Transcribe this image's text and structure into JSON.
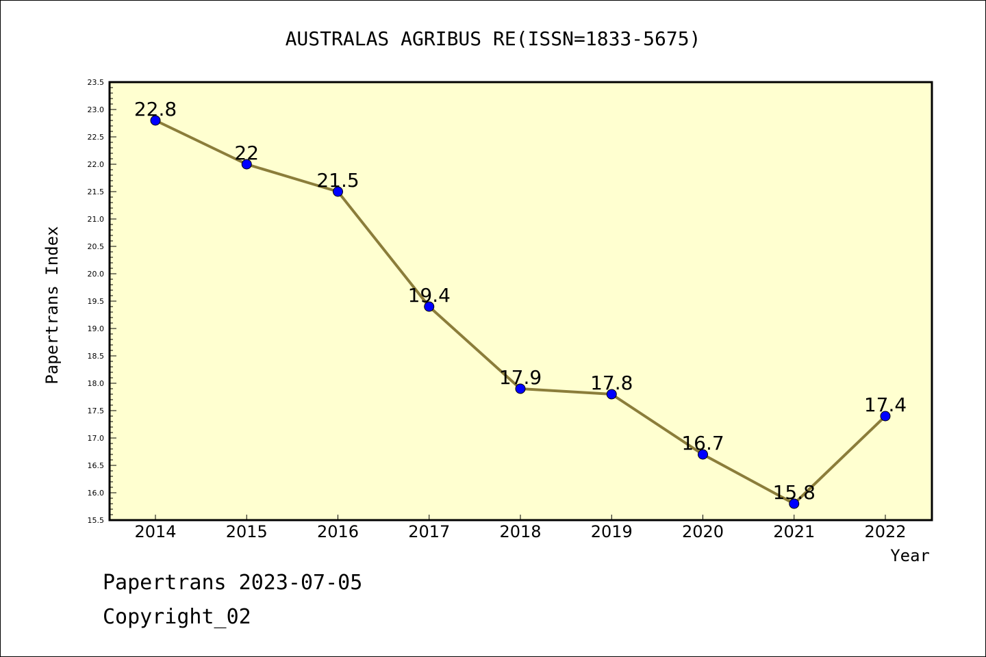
{
  "chart_data": {
    "type": "line",
    "title": "AUSTRALAS AGRIBUS RE(ISSN=1833-5675)",
    "xlabel": "Year",
    "ylabel": "Papertrans Index",
    "categories": [
      "2014",
      "2015",
      "2016",
      "2017",
      "2018",
      "2019",
      "2020",
      "2021",
      "2022"
    ],
    "values": [
      22.8,
      22,
      21.5,
      19.4,
      17.9,
      17.8,
      16.7,
      15.8,
      17.4
    ],
    "data_labels": [
      "22.8",
      "22",
      "21.5",
      "19.4",
      "17.9",
      "17.8",
      "16.7",
      "15.8",
      "17.4"
    ],
    "ylim": [
      15.5,
      23.5
    ],
    "yticks": [
      "15.5",
      "16.0",
      "16.5",
      "17.0",
      "17.5",
      "18.0",
      "18.5",
      "19.0",
      "19.5",
      "20.0",
      "20.5",
      "21.0",
      "21.5",
      "22.0",
      "22.5",
      "23.0",
      "23.5"
    ],
    "grid": false,
    "legend": "none",
    "colors": {
      "plot_background": "#ffffd0",
      "line": "#8b7d3a",
      "marker": "#0000ff"
    }
  },
  "footer": {
    "date_text": "Papertrans 2023-07-05",
    "copyright_text": "Copyright_02"
  }
}
